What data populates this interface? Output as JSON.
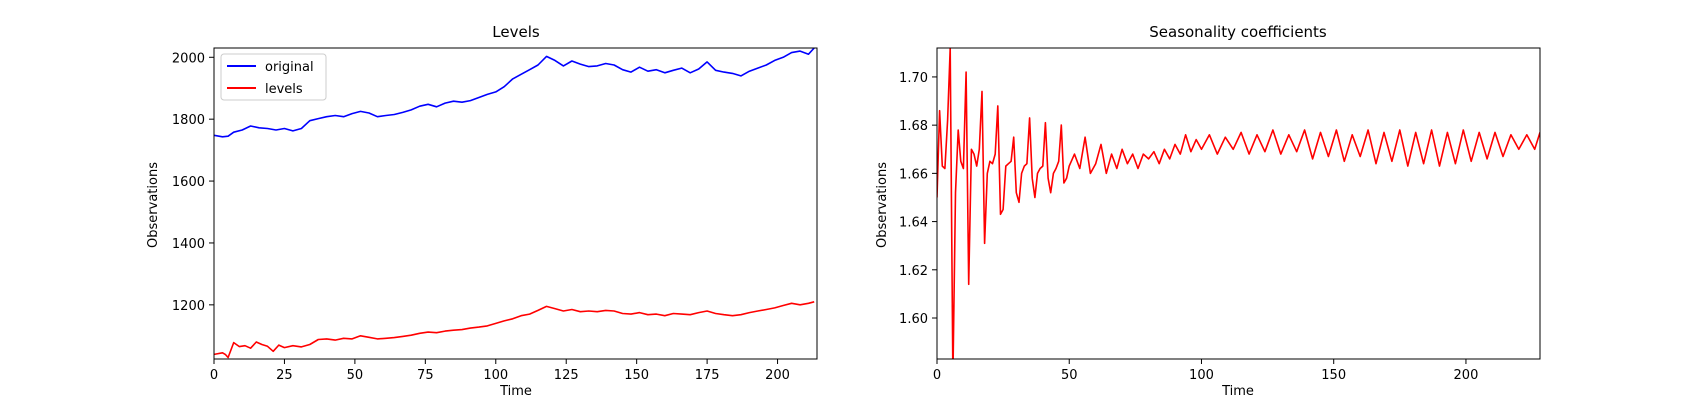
{
  "chart_data": [
    {
      "type": "line",
      "title": "Levels",
      "xlabel": "Time",
      "ylabel": "Observations",
      "xlim": [
        0,
        214
      ],
      "ylim": [
        1025,
        2030
      ],
      "xticks": [
        0,
        25,
        50,
        75,
        100,
        125,
        150,
        175,
        200
      ],
      "yticks": [
        1200,
        1400,
        1600,
        1800,
        2000
      ],
      "grid": false,
      "legend": "top-left",
      "series": [
        {
          "name": "original",
          "color": "#0000ff",
          "x": [
            0,
            3,
            5,
            7,
            10,
            13,
            16,
            19,
            22,
            25,
            28,
            31,
            34,
            37,
            40,
            43,
            46,
            49,
            52,
            55,
            58,
            61,
            64,
            67,
            70,
            73,
            76,
            79,
            82,
            85,
            88,
            91,
            94,
            97,
            100,
            103,
            106,
            109,
            112,
            115,
            118,
            121,
            124,
            127,
            130,
            133,
            136,
            139,
            142,
            145,
            148,
            151,
            154,
            157,
            160,
            163,
            166,
            169,
            172,
            175,
            178,
            181,
            184,
            187,
            190,
            193,
            196,
            199,
            202,
            205,
            208,
            211,
            213
          ],
          "y": [
            1748,
            1743,
            1745,
            1758,
            1765,
            1778,
            1772,
            1770,
            1765,
            1770,
            1762,
            1770,
            1795,
            1802,
            1808,
            1812,
            1808,
            1818,
            1825,
            1820,
            1808,
            1812,
            1815,
            1822,
            1830,
            1842,
            1848,
            1840,
            1852,
            1858,
            1855,
            1860,
            1870,
            1880,
            1888,
            1905,
            1930,
            1945,
            1960,
            1975,
            2003,
            1990,
            1972,
            1988,
            1978,
            1970,
            1972,
            1980,
            1975,
            1960,
            1952,
            1968,
            1955,
            1960,
            1950,
            1958,
            1965,
            1950,
            1962,
            1985,
            1958,
            1952,
            1948,
            1940,
            1955,
            1965,
            1975,
            1990,
            2000,
            2015,
            2020,
            2010,
            2030
          ]
        },
        {
          "name": "levels",
          "color": "#ff0000",
          "x": [
            0,
            3,
            4,
            5,
            7,
            9,
            11,
            13,
            15,
            17,
            19,
            21,
            23,
            25,
            28,
            31,
            34,
            37,
            40,
            43,
            46,
            49,
            52,
            55,
            58,
            61,
            64,
            67,
            70,
            73,
            76,
            79,
            82,
            85,
            88,
            91,
            94,
            97,
            100,
            103,
            106,
            109,
            112,
            115,
            118,
            121,
            124,
            127,
            130,
            133,
            136,
            139,
            142,
            145,
            148,
            151,
            154,
            157,
            160,
            163,
            166,
            169,
            172,
            175,
            178,
            181,
            184,
            187,
            190,
            193,
            196,
            199,
            202,
            205,
            208,
            211,
            213
          ],
          "y": [
            1040,
            1045,
            1040,
            1030,
            1078,
            1065,
            1068,
            1060,
            1080,
            1072,
            1066,
            1050,
            1070,
            1062,
            1068,
            1064,
            1072,
            1088,
            1090,
            1086,
            1092,
            1090,
            1100,
            1095,
            1090,
            1092,
            1094,
            1098,
            1102,
            1108,
            1112,
            1110,
            1115,
            1118,
            1120,
            1125,
            1128,
            1132,
            1140,
            1148,
            1155,
            1165,
            1170,
            1182,
            1195,
            1188,
            1180,
            1185,
            1178,
            1180,
            1178,
            1182,
            1180,
            1172,
            1170,
            1175,
            1168,
            1170,
            1165,
            1172,
            1170,
            1168,
            1175,
            1180,
            1172,
            1168,
            1165,
            1168,
            1175,
            1180,
            1185,
            1190,
            1198,
            1205,
            1200,
            1205,
            1210
          ]
        }
      ]
    },
    {
      "type": "line",
      "title": "Seasonality coefficients",
      "xlabel": "Time",
      "ylabel": "Observations",
      "xlim": [
        0,
        228
      ],
      "ylim": [
        1.583,
        1.712
      ],
      "xticks": [
        0,
        50,
        100,
        150,
        200
      ],
      "yticks": [
        1.6,
        1.62,
        1.64,
        1.66,
        1.68,
        1.7
      ],
      "ytick_labels": [
        "1.60",
        "1.62",
        "1.64",
        "1.66",
        "1.68",
        "1.70"
      ],
      "grid": false,
      "series": [
        {
          "color": "#ff0000",
          "x": [
            0,
            1,
            2,
            3,
            4,
            5,
            6,
            7,
            8,
            9,
            10,
            11,
            12,
            13,
            14,
            15,
            16,
            17,
            18,
            19,
            20,
            21,
            22,
            23,
            24,
            25,
            26,
            27,
            28,
            29,
            30,
            31,
            32,
            33,
            34,
            35,
            36,
            37,
            38,
            39,
            40,
            41,
            42,
            43,
            44,
            45,
            46,
            47,
            48,
            49,
            50,
            52,
            54,
            56,
            58,
            60,
            62,
            64,
            66,
            68,
            70,
            72,
            74,
            76,
            78,
            80,
            82,
            84,
            86,
            88,
            90,
            92,
            94,
            96,
            98,
            100,
            103,
            106,
            109,
            112,
            115,
            118,
            121,
            124,
            127,
            130,
            133,
            136,
            139,
            142,
            145,
            148,
            151,
            154,
            157,
            160,
            163,
            166,
            169,
            172,
            175,
            178,
            181,
            184,
            187,
            190,
            193,
            196,
            199,
            202,
            205,
            208,
            211,
            214,
            217,
            220,
            223,
            226,
            228
          ],
          "y": [
            1.65,
            1.686,
            1.663,
            1.662,
            1.682,
            1.712,
            1.575,
            1.652,
            1.678,
            1.665,
            1.662,
            1.702,
            1.614,
            1.67,
            1.668,
            1.663,
            1.67,
            1.694,
            1.631,
            1.66,
            1.665,
            1.664,
            1.668,
            1.688,
            1.643,
            1.645,
            1.663,
            1.664,
            1.665,
            1.675,
            1.652,
            1.648,
            1.66,
            1.663,
            1.664,
            1.683,
            1.658,
            1.65,
            1.66,
            1.662,
            1.663,
            1.681,
            1.658,
            1.652,
            1.66,
            1.662,
            1.665,
            1.68,
            1.656,
            1.658,
            1.663,
            1.668,
            1.662,
            1.675,
            1.66,
            1.664,
            1.672,
            1.66,
            1.668,
            1.662,
            1.67,
            1.664,
            1.668,
            1.662,
            1.668,
            1.666,
            1.669,
            1.664,
            1.67,
            1.666,
            1.672,
            1.668,
            1.676,
            1.669,
            1.674,
            1.67,
            1.676,
            1.668,
            1.675,
            1.67,
            1.677,
            1.668,
            1.676,
            1.669,
            1.678,
            1.668,
            1.676,
            1.669,
            1.678,
            1.666,
            1.677,
            1.667,
            1.678,
            1.665,
            1.676,
            1.667,
            1.678,
            1.664,
            1.677,
            1.665,
            1.678,
            1.663,
            1.677,
            1.664,
            1.678,
            1.663,
            1.677,
            1.664,
            1.678,
            1.665,
            1.677,
            1.666,
            1.677,
            1.667,
            1.676,
            1.67,
            1.676,
            1.67,
            1.677
          ]
        }
      ]
    }
  ]
}
